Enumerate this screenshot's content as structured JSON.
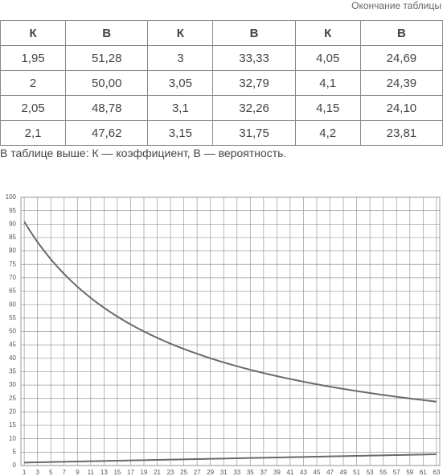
{
  "header": {
    "caption": "Окончание таблицы"
  },
  "table": {
    "header": [
      "К",
      "В",
      "К",
      "В",
      "К",
      "В"
    ],
    "rows": [
      [
        "1,95",
        "51,28",
        "3",
        "33,33",
        "4,05",
        "24,69"
      ],
      [
        "2",
        "50,00",
        "3,05",
        "32,79",
        "4,1",
        "24,39"
      ],
      [
        "2,05",
        "48,78",
        "3,1",
        "32,26",
        "4,15",
        "24,10"
      ],
      [
        "2,1",
        "47,62",
        "3,15",
        "31,75",
        "4,2",
        "23,81"
      ]
    ]
  },
  "note": "В таблице выше: К — коэффициент, В — вероятность.",
  "chart_data": {
    "type": "line",
    "x": [
      1,
      2,
      3,
      4,
      5,
      6,
      7,
      8,
      9,
      10,
      11,
      12,
      13,
      14,
      15,
      16,
      17,
      18,
      19,
      20,
      21,
      22,
      23,
      24,
      25,
      26,
      27,
      28,
      29,
      30,
      31,
      32,
      33,
      34,
      35,
      36,
      37,
      38,
      39,
      40,
      41,
      42,
      43,
      44,
      45,
      46,
      47,
      48,
      49,
      50,
      51,
      52,
      53,
      54,
      55,
      56,
      57,
      58,
      59,
      60,
      61,
      62,
      63
    ],
    "series": [
      {
        "color": "#6a6a6a",
        "values": [
          90.91,
          86.96,
          83.33,
          80.0,
          76.92,
          74.07,
          71.43,
          68.97,
          66.67,
          64.52,
          62.5,
          60.61,
          58.82,
          57.14,
          55.56,
          54.05,
          52.63,
          51.28,
          50,
          48.78,
          47.62,
          46.51,
          45.45,
          44.44,
          43.48,
          42.55,
          41.67,
          40.82,
          40,
          39.22,
          38.46,
          37.74,
          37.04,
          36.36,
          35.71,
          35.09,
          34.48,
          33.9,
          33.33,
          32.79,
          32.26,
          31.75,
          31.25,
          30.77,
          30.3,
          29.85,
          29.41,
          28.99,
          28.57,
          28.17,
          27.78,
          27.4,
          27.03,
          26.67,
          26.32,
          25.97,
          25.64,
          25.32,
          25,
          24.69,
          24.39,
          24.1,
          23.81
        ]
      },
      {
        "color": "#6a6a6a",
        "values": [
          1.1,
          1.15,
          1.2,
          1.25,
          1.3,
          1.35,
          1.4,
          1.45,
          1.5,
          1.55,
          1.6,
          1.65,
          1.7,
          1.75,
          1.8,
          1.85,
          1.9,
          1.95,
          2,
          2.05,
          2.1,
          2.15,
          2.2,
          2.25,
          2.3,
          2.35,
          2.4,
          2.45,
          2.5,
          2.55,
          2.6,
          2.65,
          2.7,
          2.75,
          2.8,
          2.85,
          2.9,
          2.95,
          3,
          3.05,
          3.1,
          3.15,
          3.2,
          3.25,
          3.3,
          3.35,
          3.4,
          3.45,
          3.5,
          3.55,
          3.6,
          3.65,
          3.7,
          3.75,
          3.8,
          3.85,
          3.9,
          3.95,
          4,
          4.05,
          4.1,
          4.15,
          4.2
        ]
      }
    ],
    "xlim": [
      0.5,
      63.5
    ],
    "xticks": [
      1,
      3,
      5,
      7,
      9,
      11,
      13,
      15,
      17,
      19,
      21,
      23,
      25,
      27,
      29,
      31,
      33,
      35,
      37,
      39,
      41,
      43,
      45,
      47,
      49,
      51,
      53,
      55,
      57,
      59,
      61,
      63
    ],
    "ylim": [
      0,
      100
    ],
    "yticks": [
      0,
      5,
      10,
      15,
      20,
      25,
      30,
      35,
      40,
      45,
      50,
      55,
      60,
      65,
      70,
      75,
      80,
      85,
      90,
      95,
      100
    ],
    "grid": true
  }
}
